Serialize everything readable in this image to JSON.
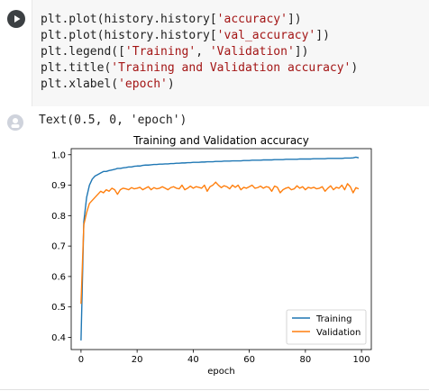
{
  "code": {
    "lines": [
      [
        {
          "t": "plt.plot(history.history["
        },
        {
          "t": "'accuracy'",
          "s": true
        },
        {
          "t": "])"
        }
      ],
      [
        {
          "t": "plt.plot(history.history["
        },
        {
          "t": "'val_accuracy'",
          "s": true
        },
        {
          "t": "])"
        }
      ],
      [
        {
          "t": "plt.legend(["
        },
        {
          "t": "'Training'",
          "s": true
        },
        {
          "t": ", "
        },
        {
          "t": "'Validation'",
          "s": true
        },
        {
          "t": "])"
        }
      ],
      [
        {
          "t": "plt.title("
        },
        {
          "t": "'Training and Validation accuracy'",
          "s": true
        },
        {
          "t": ")"
        }
      ],
      [
        {
          "t": "plt.xlabel("
        },
        {
          "t": "'epoch'",
          "s": true
        },
        {
          "t": ")"
        }
      ]
    ]
  },
  "output": {
    "text": "Text(0.5, 0, 'epoch')"
  },
  "colors": {
    "training": "#1f77b4",
    "validation": "#ff7f0e"
  },
  "chart_data": {
    "type": "line",
    "title": "Training and Validation accuracy",
    "xlabel": "epoch",
    "ylabel": "",
    "xlim": [
      -3.5,
      103.5
    ],
    "ylim": [
      0.36,
      1.02
    ],
    "xticks": [
      0,
      20,
      40,
      60,
      80,
      100
    ],
    "yticks": [
      0.4,
      0.5,
      0.6,
      0.7,
      0.8,
      0.9,
      1.0
    ],
    "ytick_labels": [
      "0.4",
      "0.5",
      "0.6",
      "0.7",
      "0.8",
      "0.9",
      "1.0"
    ],
    "grid": false,
    "legend": "lower-right",
    "series": [
      {
        "name": "Training",
        "color": "#1f77b4",
        "values": [
          0.39,
          0.78,
          0.86,
          0.9,
          0.92,
          0.93,
          0.935,
          0.94,
          0.945,
          0.945,
          0.948,
          0.95,
          0.952,
          0.955,
          0.955,
          0.957,
          0.958,
          0.96,
          0.96,
          0.962,
          0.963,
          0.963,
          0.965,
          0.966,
          0.966,
          0.967,
          0.968,
          0.968,
          0.969,
          0.969,
          0.97,
          0.97,
          0.971,
          0.971,
          0.972,
          0.972,
          0.973,
          0.973,
          0.974,
          0.974,
          0.975,
          0.975,
          0.975,
          0.976,
          0.976,
          0.977,
          0.977,
          0.977,
          0.978,
          0.978,
          0.978,
          0.979,
          0.979,
          0.979,
          0.98,
          0.98,
          0.98,
          0.98,
          0.981,
          0.981,
          0.981,
          0.982,
          0.982,
          0.982,
          0.982,
          0.983,
          0.983,
          0.983,
          0.983,
          0.984,
          0.984,
          0.984,
          0.984,
          0.985,
          0.985,
          0.985,
          0.985,
          0.985,
          0.986,
          0.986,
          0.986,
          0.986,
          0.986,
          0.987,
          0.987,
          0.987,
          0.987,
          0.987,
          0.988,
          0.988,
          0.988,
          0.988,
          0.988,
          0.988,
          0.989,
          0.989,
          0.989,
          0.99,
          0.992,
          0.99
        ]
      },
      {
        "name": "Validation",
        "color": "#ff7f0e",
        "values": [
          0.51,
          0.77,
          0.81,
          0.84,
          0.85,
          0.86,
          0.87,
          0.88,
          0.875,
          0.885,
          0.88,
          0.89,
          0.885,
          0.87,
          0.885,
          0.89,
          0.888,
          0.885,
          0.892,
          0.888,
          0.89,
          0.893,
          0.885,
          0.89,
          0.895,
          0.885,
          0.892,
          0.888,
          0.89,
          0.895,
          0.89,
          0.885,
          0.892,
          0.895,
          0.89,
          0.888,
          0.9,
          0.885,
          0.89,
          0.897,
          0.89,
          0.895,
          0.893,
          0.89,
          0.9,
          0.88,
          0.895,
          0.9,
          0.91,
          0.9,
          0.892,
          0.898,
          0.895,
          0.888,
          0.9,
          0.893,
          0.9,
          0.885,
          0.893,
          0.89,
          0.895,
          0.9,
          0.89,
          0.892,
          0.897,
          0.89,
          0.895,
          0.893,
          0.88,
          0.897,
          0.893,
          0.875,
          0.885,
          0.89,
          0.893,
          0.885,
          0.888,
          0.898,
          0.89,
          0.895,
          0.885,
          0.893,
          0.89,
          0.893,
          0.888,
          0.89,
          0.895,
          0.88,
          0.89,
          0.898,
          0.885,
          0.893,
          0.89,
          0.9,
          0.885,
          0.905,
          0.895,
          0.875,
          0.892,
          0.888
        ]
      }
    ]
  }
}
